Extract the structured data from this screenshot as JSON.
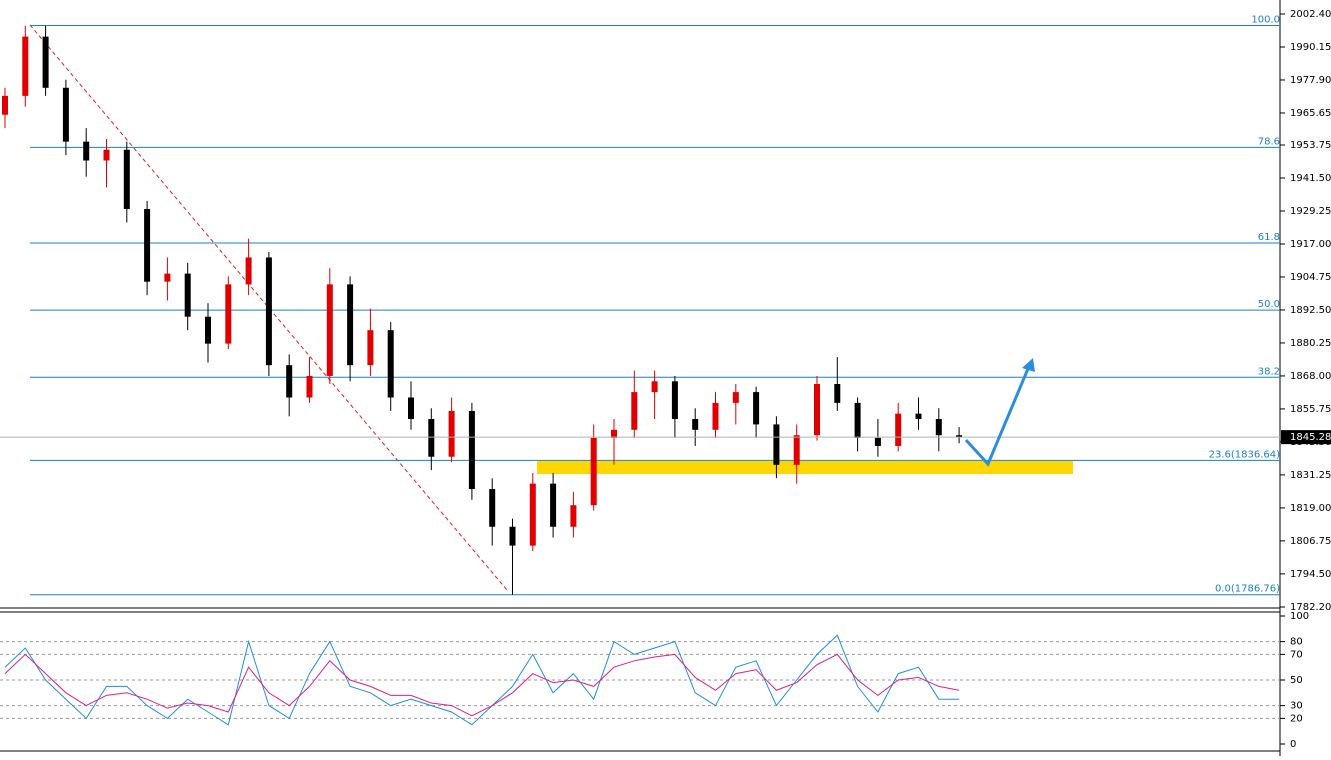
{
  "chart_data": [
    {
      "type": "candlestick",
      "open": [
        1965,
        1972,
        1994,
        1975,
        1955,
        1948,
        1952,
        1930,
        1903,
        1906,
        1890,
        1880,
        1902,
        1912,
        1872,
        1860,
        1868,
        1902,
        1872,
        1885,
        1860,
        1852,
        1838,
        1855,
        1826,
        1812,
        1805,
        1828,
        1812,
        1820,
        1845,
        1848,
        1862,
        1866,
        1852,
        1848,
        1858,
        1862,
        1850,
        1835,
        1846,
        1865,
        1858,
        1845,
        1842,
        1854,
        1852,
        1846
      ],
      "high": [
        1975,
        1998,
        1998,
        1978,
        1960,
        1956,
        1955,
        1933,
        1912,
        1910,
        1895,
        1905,
        1919,
        1914,
        1876,
        1875,
        1908,
        1905,
        1893,
        1888,
        1866,
        1856,
        1860,
        1858,
        1830,
        1815,
        1832,
        1832,
        1825,
        1850,
        1852,
        1870,
        1870,
        1868,
        1856,
        1862,
        1865,
        1864,
        1853,
        1850,
        1868,
        1875,
        1860,
        1852,
        1858,
        1860,
        1856,
        1849
      ],
      "low": [
        1960,
        1968,
        1972,
        1950,
        1942,
        1938,
        1925,
        1898,
        1896,
        1885,
        1873,
        1878,
        1898,
        1868,
        1853,
        1858,
        1865,
        1866,
        1868,
        1855,
        1848,
        1833,
        1836,
        1822,
        1805,
        1786.76,
        1803,
        1808,
        1808,
        1818,
        1835,
        1845,
        1852,
        1845,
        1842,
        1845,
        1850,
        1845,
        1830,
        1828,
        1844,
        1855,
        1840,
        1838,
        1840,
        1848,
        1840,
        1843
      ],
      "close": [
        1972,
        1994,
        1975,
        1955,
        1948,
        1952,
        1930,
        1903,
        1906,
        1890,
        1880,
        1902,
        1912,
        1872,
        1860,
        1868,
        1902,
        1872,
        1885,
        1860,
        1852,
        1838,
        1855,
        1826,
        1812,
        1805,
        1828,
        1812,
        1820,
        1845,
        1848,
        1862,
        1866,
        1852,
        1848,
        1858,
        1862,
        1850,
        1835,
        1846,
        1865,
        1858,
        1845,
        1842,
        1854,
        1852,
        1846,
        1845.28
      ],
      "up_color": "#e00000",
      "down_color": "#000000",
      "ylim": [
        1782.2,
        2002.4
      ],
      "yticks": [
        {
          "value": 2002.4,
          "label": "2002.40"
        },
        {
          "value": 1990.15,
          "label": "1990.15"
        },
        {
          "value": 1977.9,
          "label": "1977.90"
        },
        {
          "value": 1965.65,
          "label": "1965.65"
        },
        {
          "value": 1953.75,
          "label": "1953.75"
        },
        {
          "value": 1941.5,
          "label": "1941.50"
        },
        {
          "value": 1929.25,
          "label": "1929.25"
        },
        {
          "value": 1917,
          "label": "1917.00"
        },
        {
          "value": 1904.75,
          "label": "1904.75"
        },
        {
          "value": 1892.5,
          "label": "1892.50"
        },
        {
          "value": 1880.25,
          "label": "1880.25"
        },
        {
          "value": 1868,
          "label": "1868.00"
        },
        {
          "value": 1855.75,
          "label": "1855.75"
        },
        {
          "value": 1843.5,
          "label": "1843.50"
        },
        {
          "value": 1831.25,
          "label": "1831.25"
        },
        {
          "value": 1819,
          "label": "1819.00"
        },
        {
          "value": 1806.75,
          "label": "1806.75"
        },
        {
          "value": 1794.5,
          "label": "1794.50"
        },
        {
          "value": 1782.2,
          "label": "1782.20"
        }
      ],
      "current_price": 1845.28,
      "fib_levels": [
        {
          "label": "100.0",
          "price": 1998.12
        },
        {
          "label": "78.6",
          "price": 1952.89
        },
        {
          "label": "61.8",
          "price": 1917.38
        },
        {
          "label": "50.0",
          "price": 1892.44
        },
        {
          "label": "38.2",
          "price": 1867.5
        },
        {
          "label": "23.6(1836.64)",
          "price": 1836.64
        },
        {
          "label": "0.0(1786.76)",
          "price": 1786.76
        }
      ],
      "fib_color": "#1e7fc8"
    },
    {
      "type": "line",
      "series": [
        {
          "color": "#1f8fe0",
          "values": [
            60,
            75,
            50,
            35,
            20,
            45,
            45,
            30,
            20,
            35,
            25,
            15,
            80,
            30,
            20,
            55,
            80,
            45,
            40,
            30,
            35,
            30,
            25,
            15,
            30,
            45,
            70,
            40,
            55,
            35,
            80,
            70,
            75,
            80,
            40,
            30,
            60,
            65,
            30,
            50,
            70,
            85,
            45,
            25,
            55,
            60,
            35,
            35
          ]
        },
        {
          "color": "#e0208a",
          "values": [
            55,
            70,
            55,
            40,
            30,
            38,
            40,
            35,
            28,
            32,
            30,
            25,
            60,
            40,
            30,
            45,
            65,
            50,
            45,
            38,
            38,
            32,
            30,
            22,
            30,
            40,
            55,
            48,
            50,
            45,
            60,
            65,
            68,
            70,
            52,
            42,
            55,
            58,
            42,
            48,
            62,
            70,
            50,
            38,
            50,
            52,
            45,
            42
          ]
        }
      ],
      "ylim": [
        0,
        100
      ],
      "yticks": [
        100,
        80,
        70,
        50,
        30,
        20,
        0
      ],
      "levels": [
        80,
        70,
        50,
        30,
        20
      ]
    }
  ]
}
